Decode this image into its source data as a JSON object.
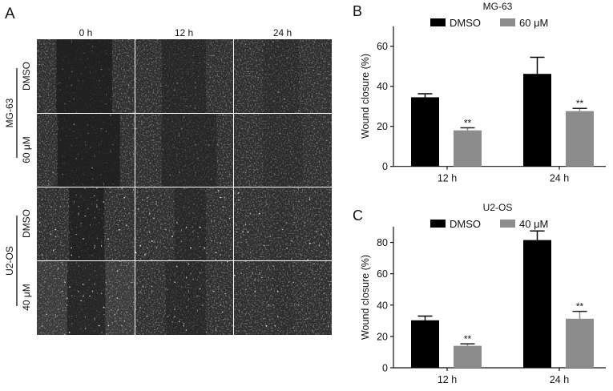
{
  "panel_a": {
    "label": "A",
    "columns": [
      "0 h",
      "12 h",
      "24 h"
    ],
    "groups": [
      {
        "name": "MG-63",
        "rows": [
          "DMSO",
          "60 μM"
        ]
      },
      {
        "name": "U2-OS",
        "rows": [
          "DMSO",
          "40 μM"
        ]
      }
    ]
  },
  "colors": {
    "dmso": "#000000",
    "treated": "#8c8c8c"
  },
  "chart_data": [
    {
      "panel_label": "B",
      "type": "bar",
      "title": "MG-63",
      "categories": [
        "12 h",
        "24 h"
      ],
      "ylabel": "Wound closure (%)",
      "xlabel": "",
      "ylim": [
        0,
        70
      ],
      "yticks": [
        "0",
        "20",
        "40",
        "60"
      ],
      "legend_placement": "top",
      "series": [
        {
          "name": "DMSO",
          "values": [
            34.5,
            46.2
          ],
          "error": [
            1.8,
            8.3
          ],
          "annotations": [
            "",
            ""
          ]
        },
        {
          "name": "60 μM",
          "values": [
            18.0,
            27.6
          ],
          "error": [
            1.3,
            1.4
          ],
          "annotations": [
            "**",
            "**"
          ]
        }
      ]
    },
    {
      "panel_label": "C",
      "type": "bar",
      "title": "U2-OS",
      "categories": [
        "12 h",
        "24 h"
      ],
      "ylabel": "Wound closure (%)",
      "xlabel": "",
      "ylim": [
        0,
        90
      ],
      "yticks": [
        "0",
        "20",
        "40",
        "60",
        "80"
      ],
      "legend_placement": "top",
      "series": [
        {
          "name": "DMSO",
          "values": [
            30.3,
            81.5
          ],
          "error": [
            2.7,
            5.8
          ],
          "annotations": [
            "",
            ""
          ]
        },
        {
          "name": "40 μM",
          "values": [
            14.0,
            31.3
          ],
          "error": [
            1.3,
            4.7
          ],
          "annotations": [
            "**",
            "**"
          ]
        }
      ]
    }
  ]
}
